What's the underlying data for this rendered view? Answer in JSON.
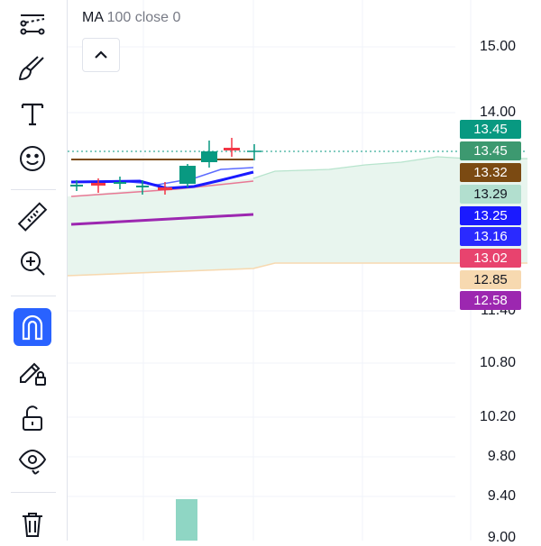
{
  "legend": {
    "name": "MA",
    "params": "100 close 0"
  },
  "toolbar": {
    "tools": [
      {
        "name": "trend-line-tool-icon"
      },
      {
        "name": "brush-tool-icon"
      },
      {
        "name": "text-tool-icon"
      },
      {
        "name": "emoji-tool-icon"
      },
      {
        "name": "ruler-tool-icon"
      },
      {
        "name": "zoom-in-tool-icon"
      },
      {
        "name": "magnet-tool-icon",
        "active": true
      },
      {
        "name": "lock-drawings-icon"
      },
      {
        "name": "unlock-icon"
      },
      {
        "name": "visibility-icon"
      },
      {
        "name": "trash-icon"
      }
    ]
  },
  "price_axis": {
    "labels": [
      "15.00",
      "14.00",
      "11.40",
      "10.80",
      "10.20",
      "9.80",
      "9.40",
      "9.00"
    ]
  },
  "price_tags": [
    {
      "value": "13.45",
      "color": "#089981",
      "text_color": "#ffffff"
    },
    {
      "value": "13.45",
      "color": "#3d9970",
      "text_color": "#ffffff"
    },
    {
      "value": "13.32",
      "color": "#7b4a12",
      "text_color": "#ffffff"
    },
    {
      "value": "13.29",
      "color": "#b2dfcf",
      "text_color": "#131722"
    },
    {
      "value": "13.25",
      "color": "#1a1aff",
      "text_color": "#ffffff"
    },
    {
      "value": "13.16",
      "color": "#2a2aff",
      "text_color": "#ffffff"
    },
    {
      "value": "13.02",
      "color": "#e8436e",
      "text_color": "#ffffff"
    },
    {
      "value": "12.85",
      "color": "#f7d9b0",
      "text_color": "#131722"
    },
    {
      "value": "12.58",
      "color": "#9c27b0",
      "text_color": "#ffffff"
    }
  ],
  "colors": {
    "up": "#089981",
    "down": "#f23645",
    "ma_blue": "#2929e6",
    "ma_purple": "#9c27b0",
    "band_fill": "#e8f5ee",
    "volume": "#8fd6c4"
  }
}
